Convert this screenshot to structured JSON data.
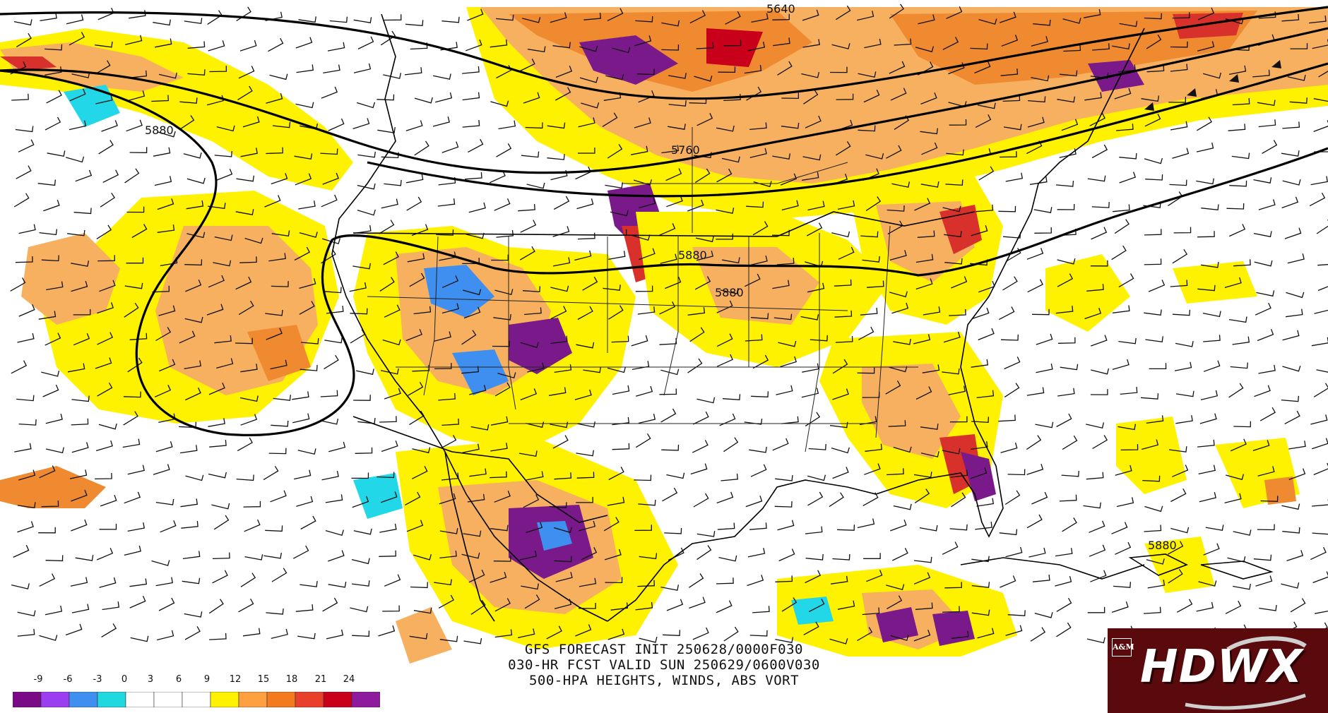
{
  "product": {
    "caption_line1": "GFS FORECAST INIT 250628/0000F030",
    "caption_line2": "030-HR FCST VALID SUN 250629/0600V030",
    "caption_line3": "500-HPA HEIGHTS, WINDS, ABS VORT"
  },
  "contour_labels": [
    "5640",
    "5760",
    "5880",
    "5880",
    "5880",
    "5880"
  ],
  "colorbar": {
    "tick_labels": [
      "-9",
      "-6",
      "-3",
      "0",
      "3",
      "6",
      "9",
      "12",
      "15",
      "18",
      "21",
      "24"
    ],
    "colors": [
      "#7a0a86",
      "#9b3df0",
      "#3f8ff0",
      "#1fd8e0",
      "#ffffff",
      "#ffffff",
      "#ffffff",
      "#fff200",
      "#ffa040",
      "#f47a20",
      "#e8402a",
      "#c8001a",
      "#8e1a9e"
    ]
  },
  "logo": {
    "text": "HDWX",
    "emblem": "A&M",
    "background": "#5a0a0c"
  },
  "vorticity_colors": {
    "yellow": "#fff200",
    "light_orange": "#f7b060",
    "orange": "#f08a30",
    "red": "#d8302a",
    "purple": "#7a1a8a",
    "cyan": "#22d8e8",
    "blue": "#3f8ff0"
  }
}
